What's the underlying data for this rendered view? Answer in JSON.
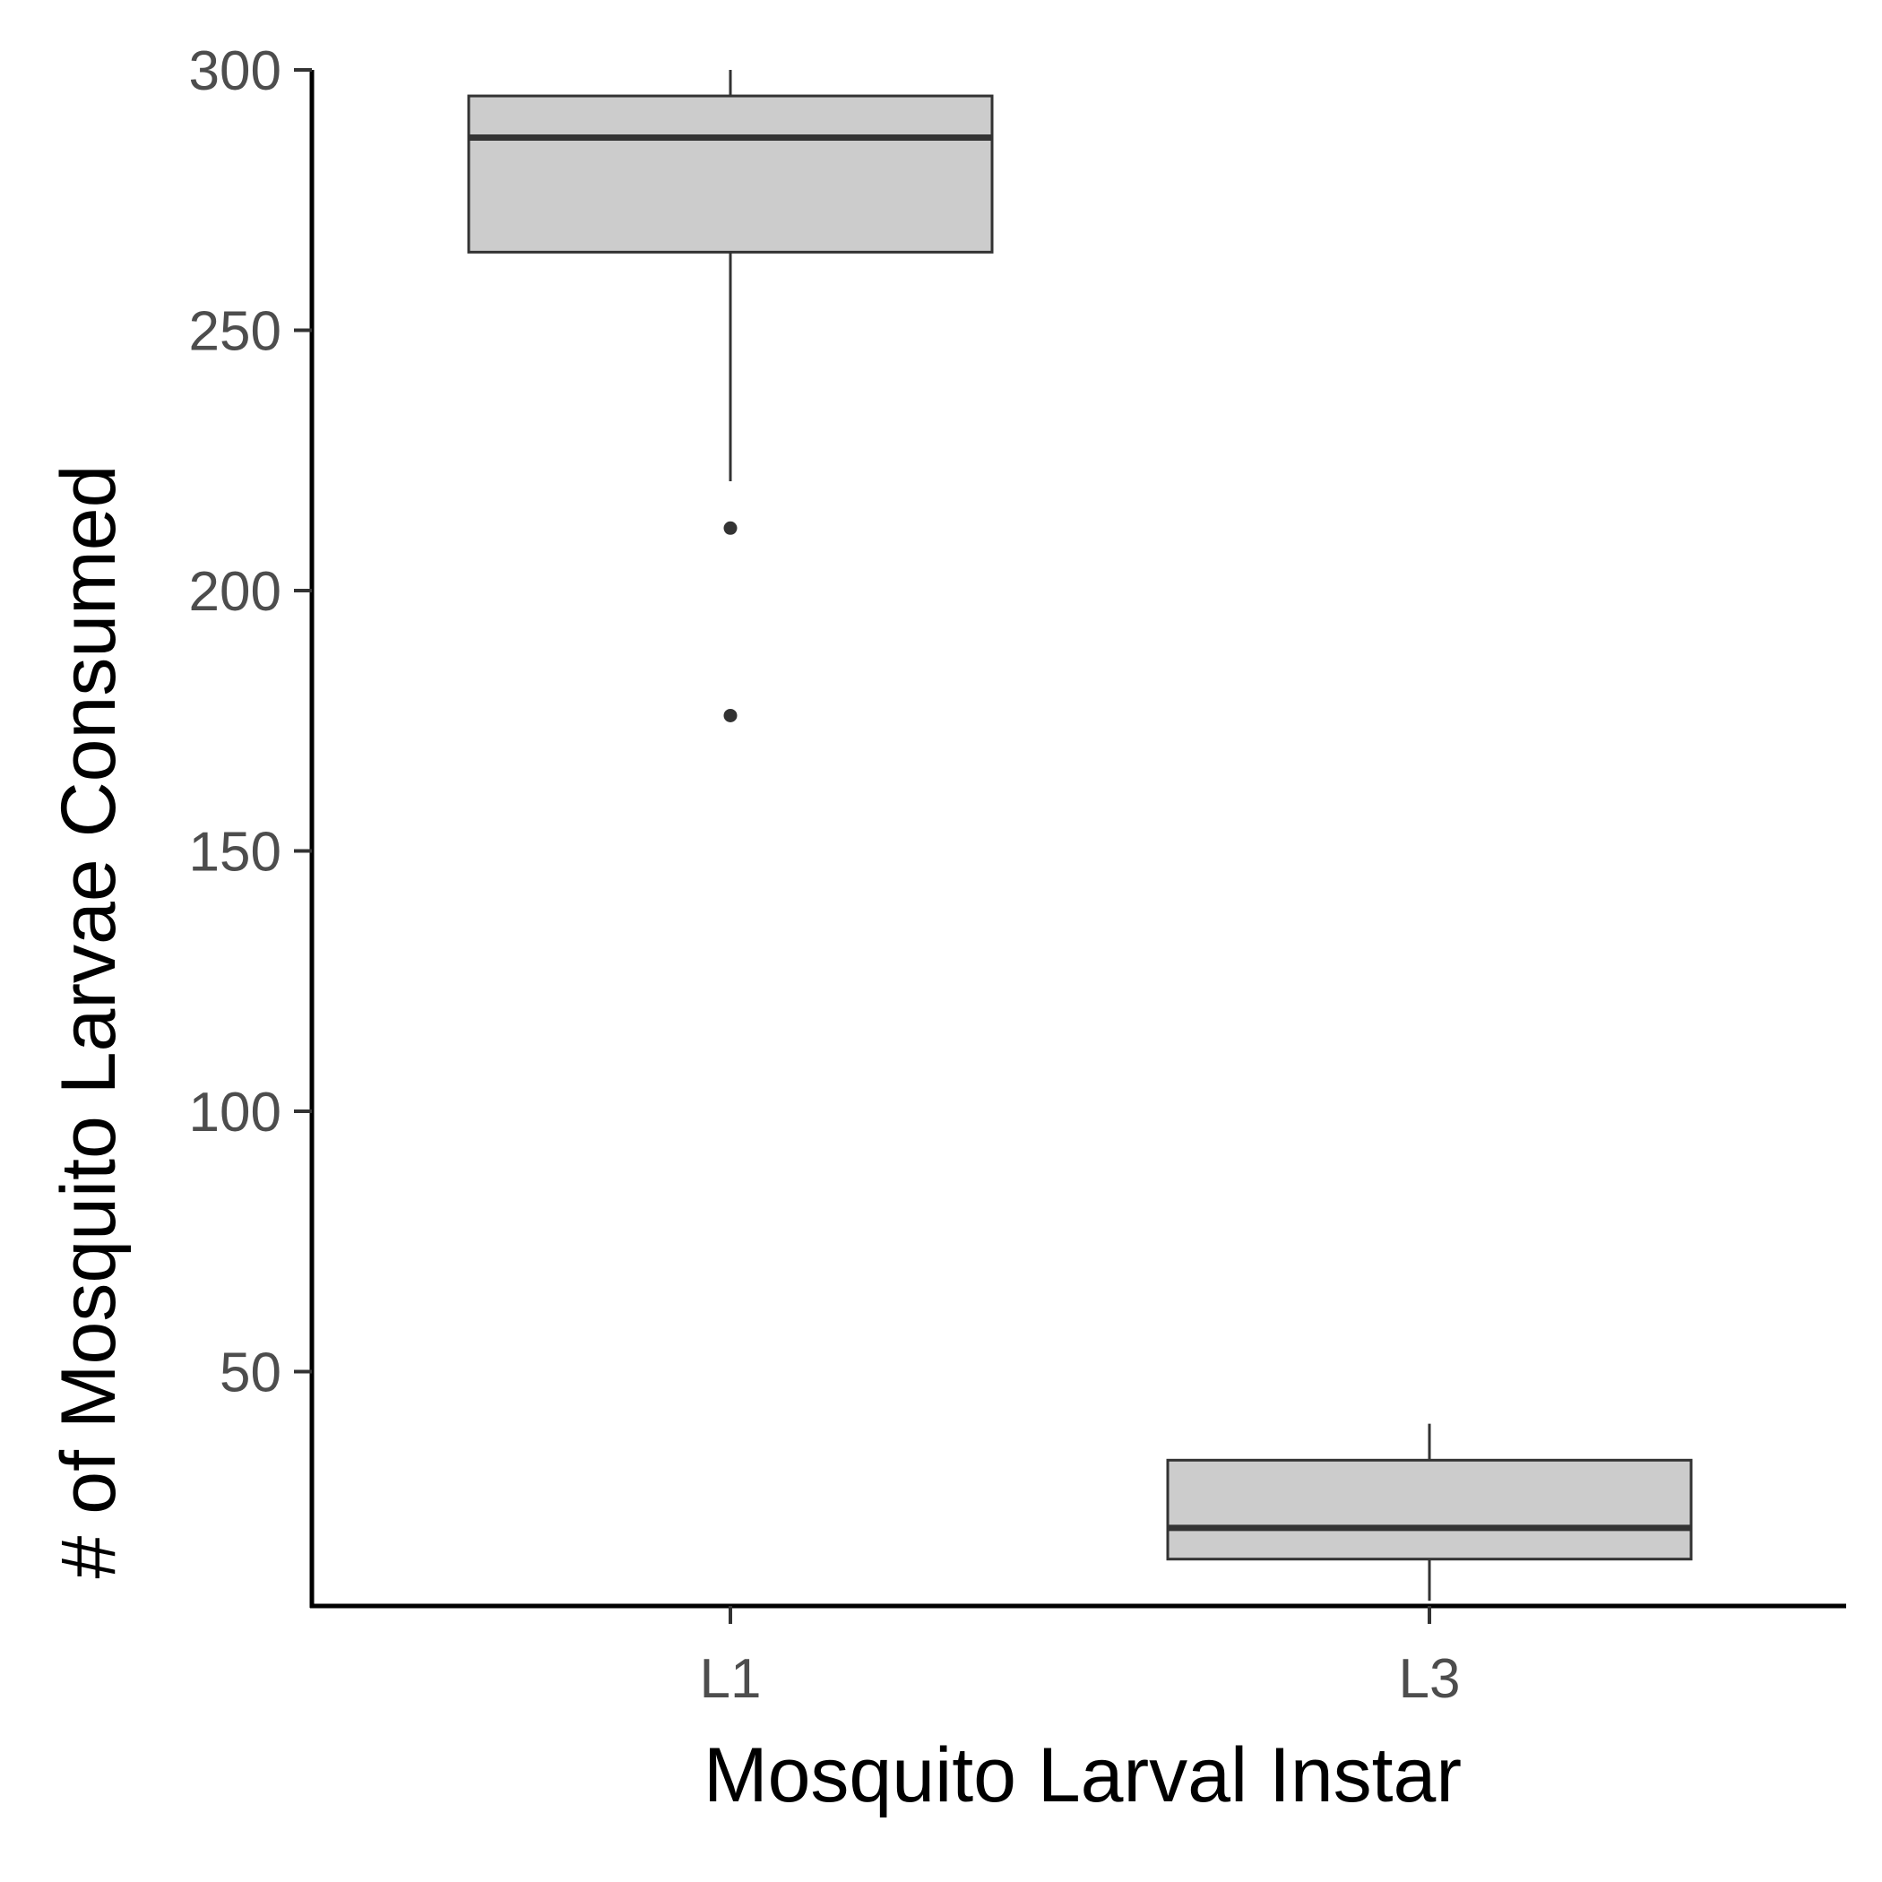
{
  "chart_data": {
    "type": "boxplot",
    "title": "",
    "xlabel": "Mosquito Larval Instar",
    "ylabel": "# of Mosquito Larvae Consumed",
    "ylim": [
      5,
      300
    ],
    "yticks": [
      50,
      100,
      150,
      200,
      250,
      300
    ],
    "grid": false,
    "legend": "none",
    "categories": [
      "L1",
      "L3"
    ],
    "boxes": [
      {
        "category": "L1",
        "whisker_low": 221,
        "q1": 265,
        "median": 287,
        "q3": 295,
        "whisker_high": 300,
        "outliers": [
          212,
          176
        ]
      },
      {
        "category": "L3",
        "whisker_low": 6,
        "q1": 14,
        "median": 20,
        "q3": 33,
        "whisker_high": 40,
        "outliers": []
      }
    ],
    "colors": {
      "box_fill": "#cccccc",
      "box_stroke": "#333333",
      "axis": "#000000",
      "tick_text": "#4d4d4d",
      "title_text": "#000000"
    }
  }
}
